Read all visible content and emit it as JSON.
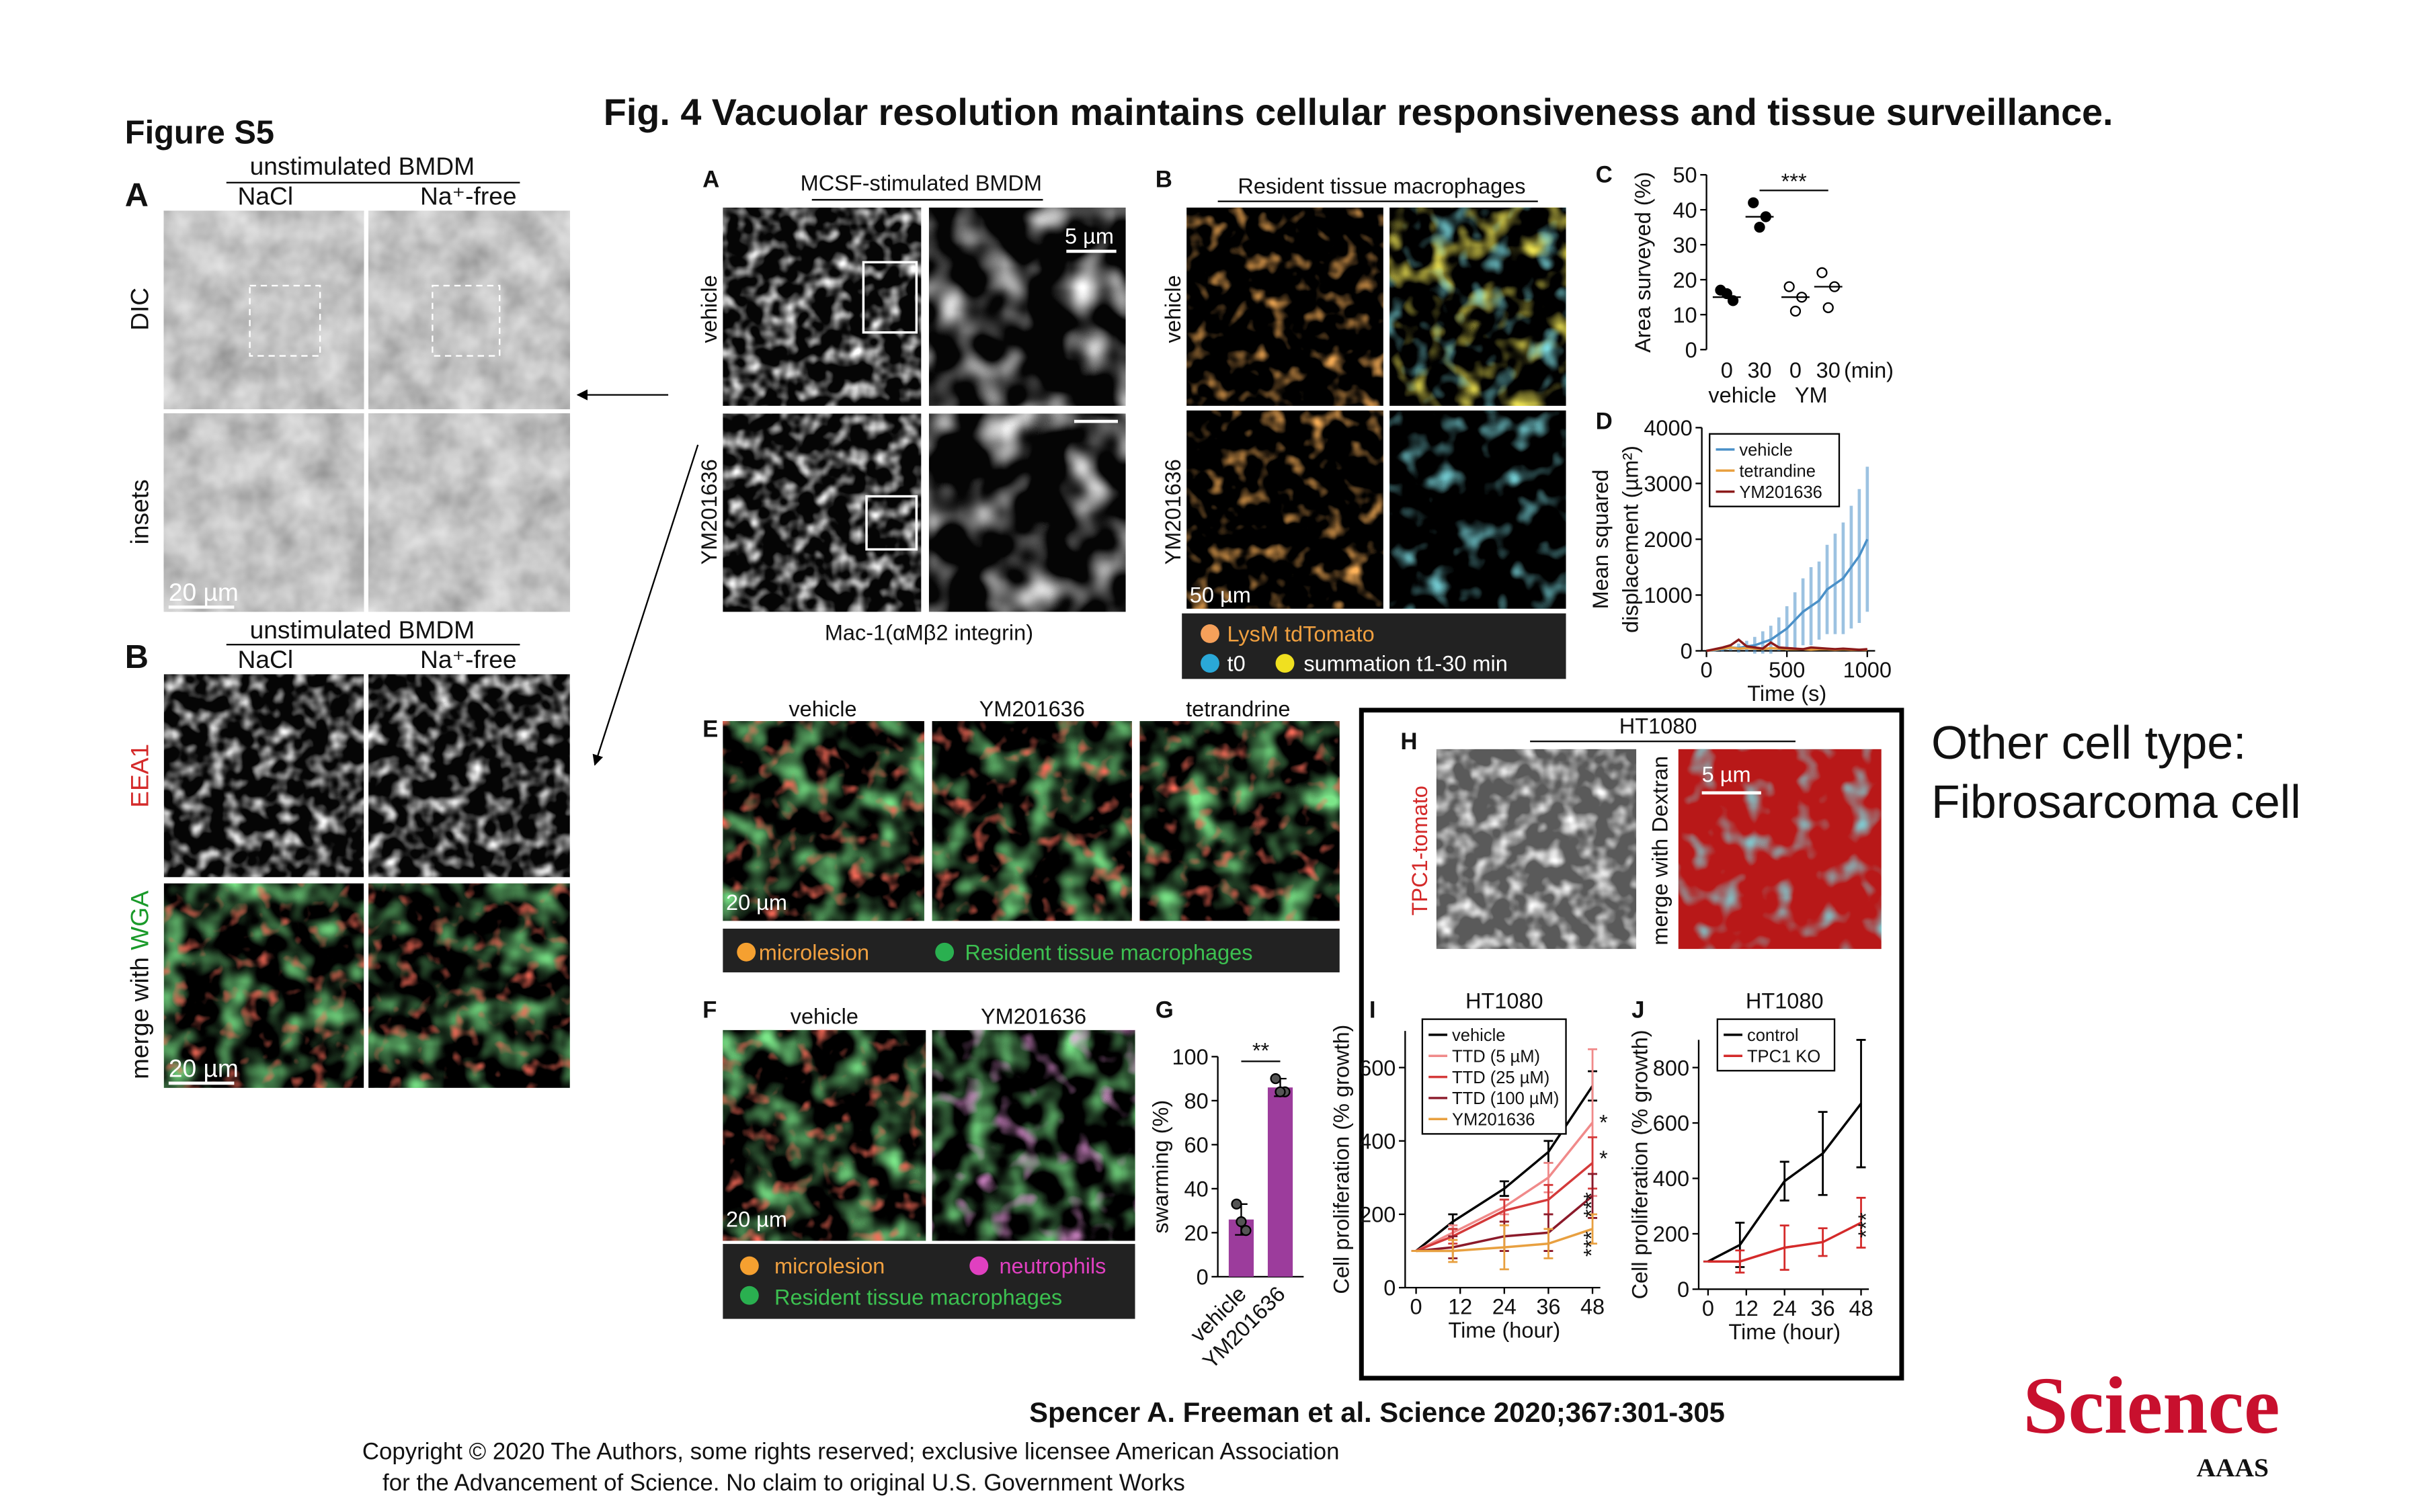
{
  "figure_label": "Figure S5",
  "title": "Fig. 4 Vacuolar resolution maintains cellular responsiveness and tissue surveillance.",
  "supplement": {
    "panel_a": {
      "letter": "A",
      "header": "unstimulated BMDM",
      "columns": [
        "NaCl",
        "Na⁺-free"
      ],
      "rows": [
        "DIC",
        "insets"
      ],
      "scale": "20 µm"
    },
    "panel_b": {
      "letter": "B",
      "header": "unstimulated BMDM",
      "columns": [
        "NaCl",
        "Na⁺-free"
      ],
      "row_top": "EEA1",
      "row_bottom": [
        "merge with ",
        "WGA"
      ],
      "scale": "20 µm"
    }
  },
  "panel_a": {
    "letter": "A",
    "header": "MCSF-stimulated BMDM",
    "rows": [
      "vehicle",
      "YM201636"
    ],
    "scale": "5 µm",
    "caption": "Mac-1(αMβ2 integrin)"
  },
  "panel_b": {
    "letter": "B",
    "header": "Resident tissue macrophages",
    "rows": [
      "vehicle",
      "YM201636"
    ],
    "scale": "50 µm",
    "legend": [
      "LysM tdTomato",
      "t0",
      "summation t1-30 min"
    ]
  },
  "panel_e": {
    "letter": "E",
    "columns": [
      "vehicle",
      "YM201636",
      "tetrandrine"
    ],
    "scale": "20 µm",
    "legend": [
      "microlesion",
      "Resident tissue macrophages"
    ]
  },
  "panel_f": {
    "letter": "F",
    "columns": [
      "vehicle",
      "YM201636"
    ],
    "scale": "20 µm",
    "legend": [
      "microlesion",
      "neutrophils",
      "Resident tissue macrophages"
    ]
  },
  "panel_h": {
    "letter": "H",
    "header": "HT1080",
    "rows": [
      "TPC1-tomato",
      "merge with Dextran"
    ],
    "scale": "5 µm"
  },
  "side_note": [
    "Other cell type:",
    "Fibrosarcoma cell"
  ],
  "citation": "Spencer A. Freeman et al. Science 2020;367:301-305",
  "copyright": [
    "Copyright © 2020 The Authors, some rights reserved; exclusive licensee American Association",
    "for the Advancement of Science. No claim to original U.S. Government Works"
  ],
  "logo": {
    "name": "Science",
    "publisher": "AAAS"
  },
  "chart_data": [
    {
      "type": "dot",
      "letter": "C",
      "ylabel": "Area surveyed (%)",
      "ylim": [
        0,
        50
      ],
      "yticks": [
        0,
        10,
        20,
        30,
        40,
        50
      ],
      "categories": [
        "0",
        "30",
        "0",
        "30"
      ],
      "x_unit": "(min)",
      "groups": [
        "vehicle",
        "YM"
      ],
      "filled": [
        true,
        true,
        false,
        false
      ],
      "points": [
        [
          17,
          14,
          16
        ],
        [
          42,
          38,
          35
        ],
        [
          18,
          15,
          11
        ],
        [
          22,
          18,
          12
        ]
      ],
      "means": [
        15,
        38,
        15,
        18
      ],
      "annotation": "***"
    },
    {
      "type": "line",
      "letter": "D",
      "ylabel": [
        "Mean squared",
        "displacement (µm²)"
      ],
      "xlabel": "Time (s)",
      "x": [
        0,
        50,
        100,
        150,
        200,
        250,
        300,
        350,
        400,
        450,
        500,
        550,
        600,
        650,
        700,
        750,
        800,
        850,
        900,
        950,
        1000
      ],
      "xlim": [
        0,
        1000
      ],
      "xticks": [
        0,
        500,
        1000
      ],
      "ylim": [
        0,
        4000
      ],
      "yticks": [
        0,
        1000,
        2000,
        3000,
        4000
      ],
      "series": [
        {
          "name": "vehicle",
          "color": "#4a90c8",
          "values": [
            0,
            10,
            30,
            60,
            50,
            80,
            100,
            150,
            200,
            300,
            400,
            550,
            700,
            800,
            900,
            1100,
            1200,
            1300,
            1500,
            1700,
            2000
          ],
          "errors": [
            0,
            20,
            40,
            60,
            80,
            100,
            150,
            200,
            250,
            300,
            400,
            500,
            600,
            700,
            700,
            800,
            900,
            1000,
            1100,
            1200,
            1300
          ]
        },
        {
          "name": "tetrandine",
          "color": "#e8a040",
          "values": [
            0,
            20,
            40,
            60,
            40,
            50,
            40,
            30,
            50,
            40,
            30,
            30,
            30,
            20,
            30,
            30,
            20,
            30,
            20,
            20,
            20
          ]
        },
        {
          "name": "YM201636",
          "color": "#8b1a1a",
          "values": [
            0,
            30,
            60,
            100,
            200,
            80,
            60,
            40,
            150,
            60,
            50,
            40,
            30,
            60,
            50,
            40,
            30,
            40,
            30,
            20,
            30
          ]
        }
      ]
    },
    {
      "type": "bar",
      "letter": "G",
      "ylabel": "swarming (%)",
      "ylim": [
        0,
        100
      ],
      "yticks": [
        0,
        20,
        40,
        60,
        80,
        100
      ],
      "categories": [
        "vehicle",
        "YM201636"
      ],
      "values": [
        26,
        86
      ],
      "errors": [
        7,
        4
      ],
      "points": [
        [
          33,
          21,
          25
        ],
        [
          90,
          84,
          84
        ]
      ],
      "color": "#9c3c9c",
      "annotation": "**"
    },
    {
      "type": "line",
      "letter": "I",
      "title": "HT1080",
      "ylabel": "Cell proliferation (% growth)",
      "xlabel": "Time (hour)",
      "x": [
        0,
        10,
        24,
        36,
        48
      ],
      "xlim": [
        0,
        48
      ],
      "xticks": [
        0,
        12,
        24,
        36,
        48
      ],
      "ylim": [
        0,
        700
      ],
      "yticks": [
        0,
        200,
        400,
        600
      ],
      "series": [
        {
          "name": "vehicle",
          "color": "#000000",
          "values": [
            100,
            180,
            270,
            370,
            550
          ],
          "errors": [
            0,
            20,
            20,
            30,
            40
          ]
        },
        {
          "name": "TTD (5 µM)",
          "color": "#f08a8a",
          "values": [
            100,
            150,
            220,
            300,
            450
          ],
          "errors": [
            0,
            20,
            20,
            40,
            200
          ]
        },
        {
          "name": "TTD (25 µM)",
          "color": "#d43a3a",
          "values": [
            100,
            140,
            210,
            240,
            340
          ],
          "errors": [
            0,
            20,
            30,
            40,
            70
          ]
        },
        {
          "name": "TTD (100 µM)",
          "color": "#8b1a2a",
          "values": [
            100,
            110,
            140,
            150,
            250
          ],
          "errors": [
            0,
            30,
            40,
            50,
            60
          ]
        },
        {
          "name": "YM201636",
          "color": "#e8a040",
          "values": [
            100,
            100,
            110,
            120,
            160
          ],
          "errors": [
            0,
            30,
            60,
            40,
            40
          ]
        }
      ],
      "annotations": [
        "*",
        "*",
        "***",
        "***"
      ]
    },
    {
      "type": "line",
      "letter": "J",
      "title": "HT1080",
      "ylabel": "Cell proliferation (% growth)",
      "xlabel": "Time (hour)",
      "x": [
        0,
        10,
        24,
        36,
        48
      ],
      "xlim": [
        0,
        48
      ],
      "xticks": [
        0,
        12,
        24,
        36,
        48
      ],
      "ylim": [
        0,
        900
      ],
      "yticks": [
        0,
        200,
        400,
        600,
        800
      ],
      "series": [
        {
          "name": "control",
          "color": "#000000",
          "values": [
            100,
            160,
            390,
            490,
            670
          ],
          "errors": [
            0,
            80,
            70,
            150,
            230
          ]
        },
        {
          "name": "TPC1 KO",
          "color": "#d42a2a",
          "values": [
            100,
            100,
            150,
            170,
            240
          ],
          "errors": [
            0,
            40,
            80,
            50,
            90
          ]
        }
      ],
      "annotations": [
        "***"
      ]
    }
  ]
}
